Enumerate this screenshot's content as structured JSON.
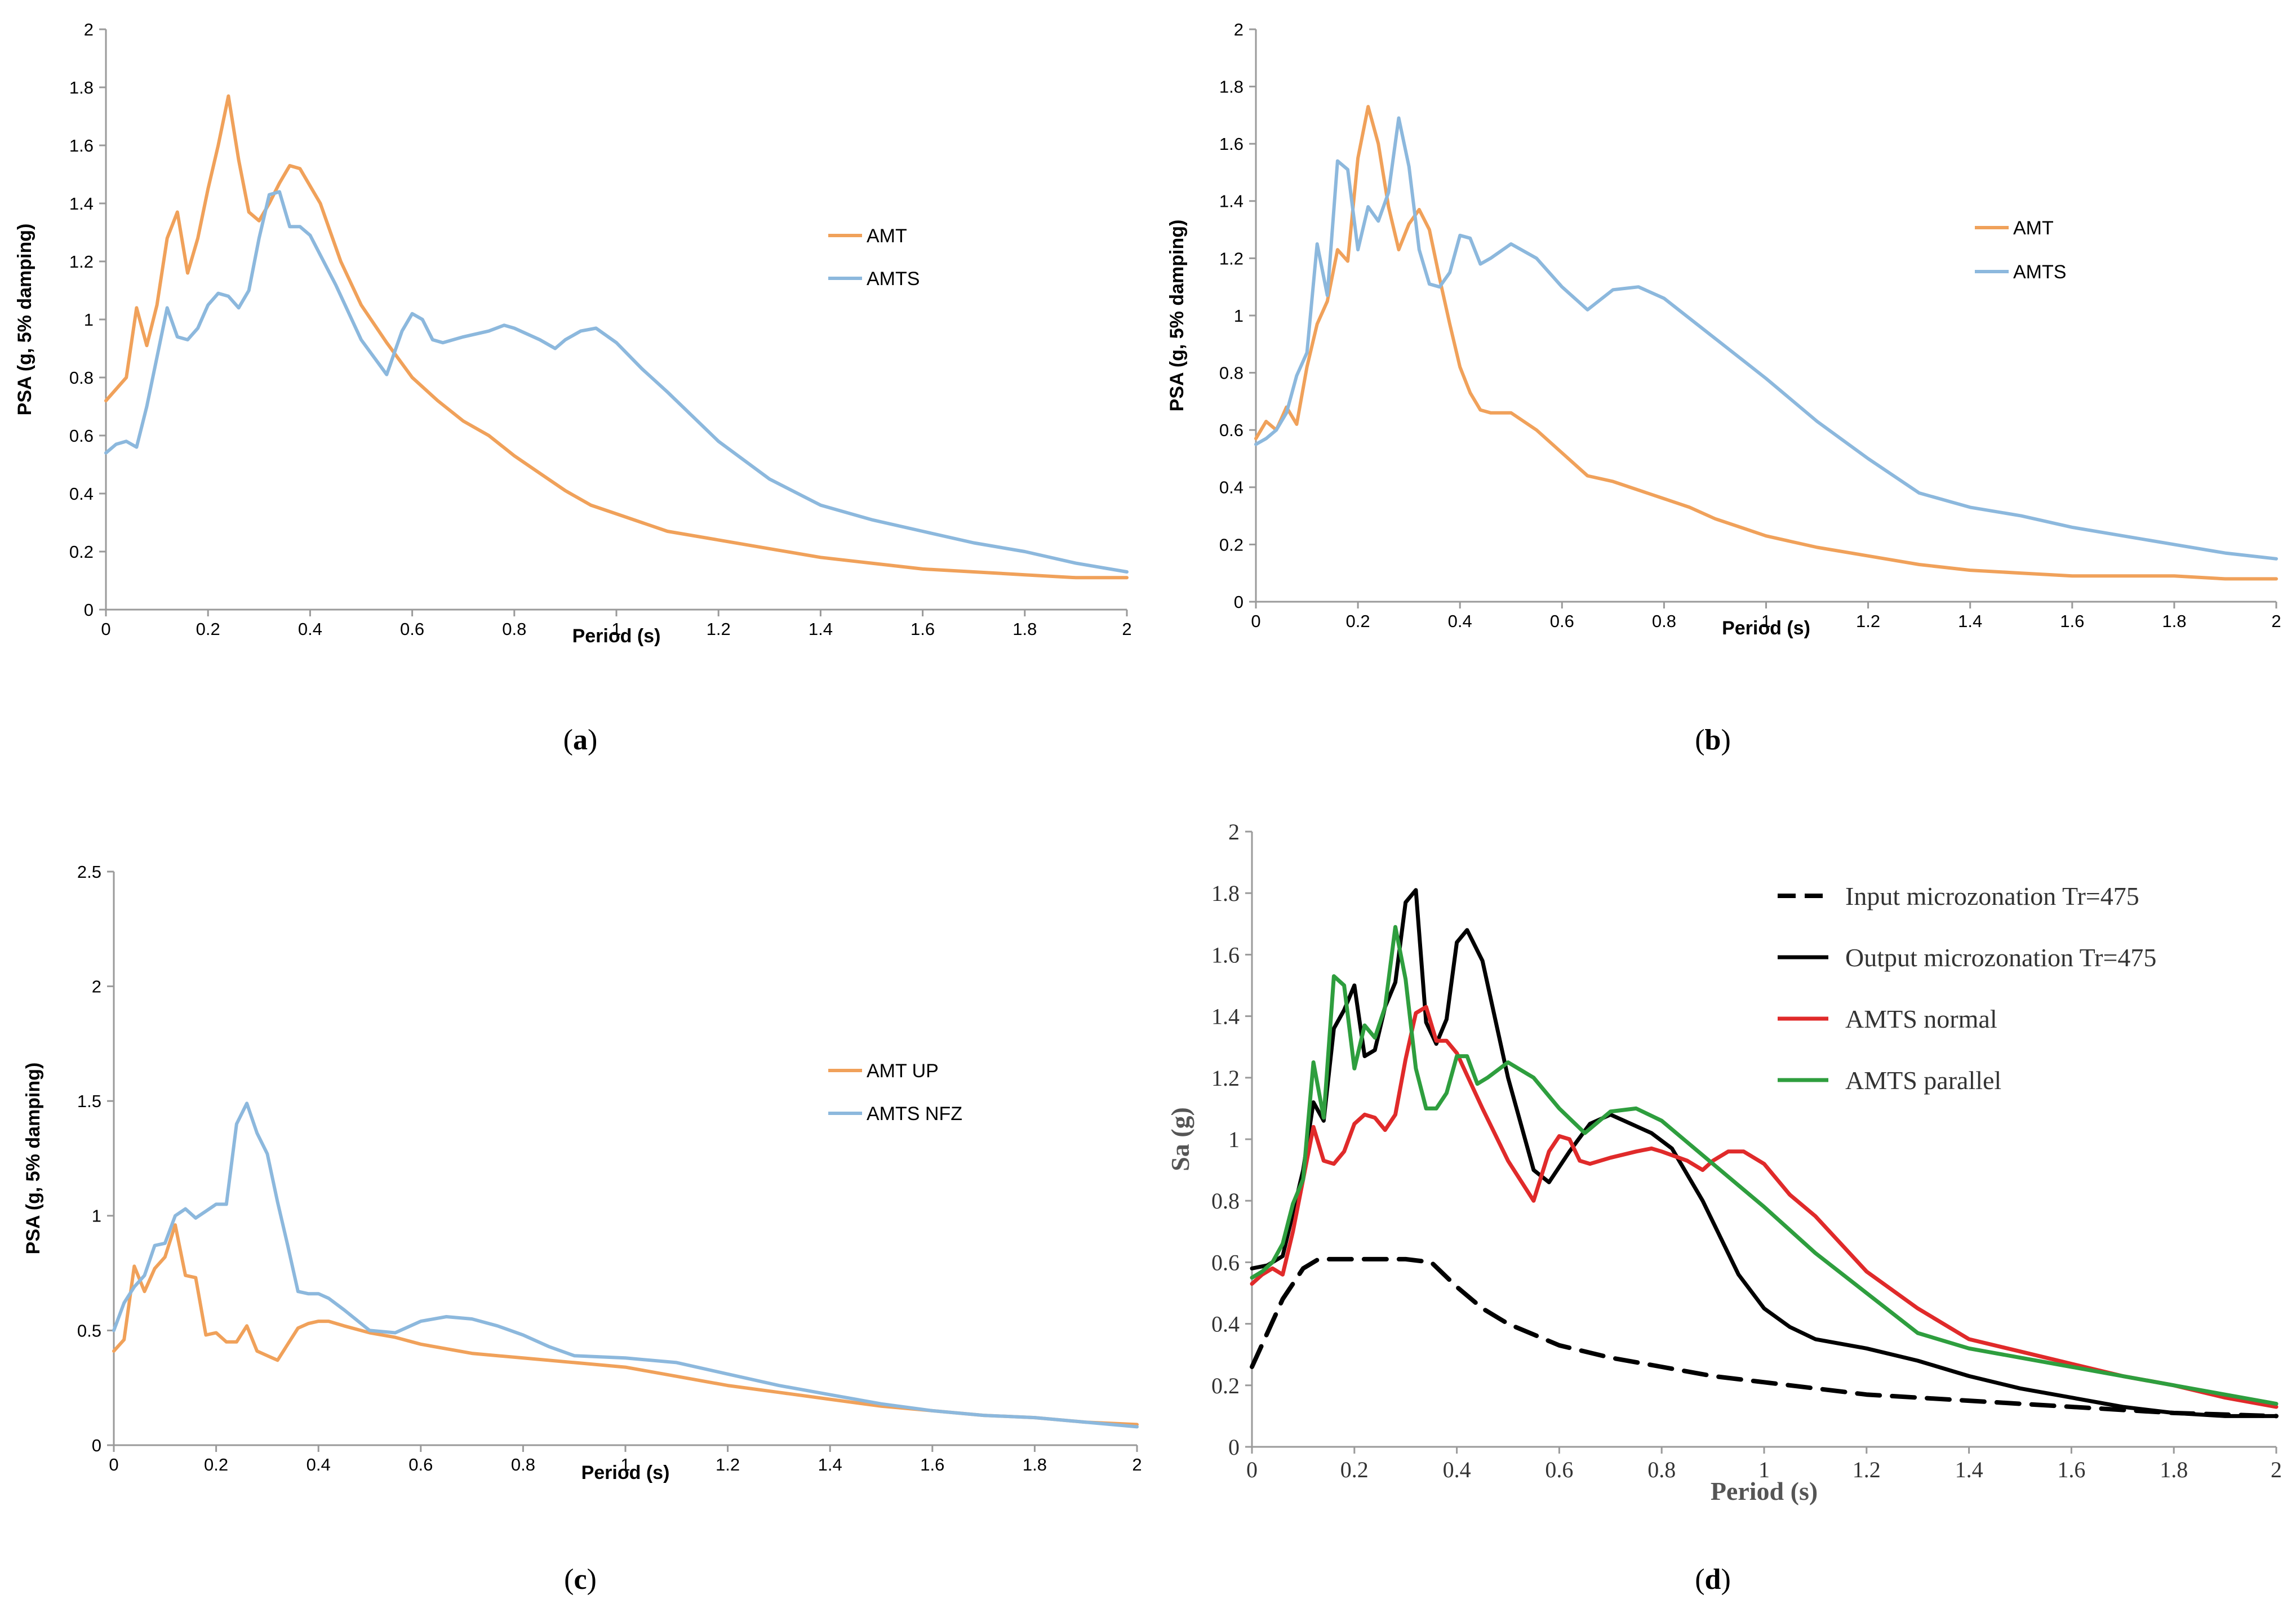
{
  "chart_data": [
    {
      "id": "a",
      "type": "line",
      "caption_letter": "a",
      "xlabel": "Period (s)",
      "ylabel": "PSA (g, 5% damping)",
      "xlim": [
        0,
        2
      ],
      "ylim": [
        0,
        2
      ],
      "xticks": [
        "0",
        "0.2",
        "0.4",
        "0.6",
        "0.8",
        "1",
        "1.2",
        "1.4",
        "1.6",
        "1.8",
        "2"
      ],
      "yticks": [
        "0",
        "0.2",
        "0.4",
        "0.6",
        "0.8",
        "1",
        "1.2",
        "1.4",
        "1.6",
        "1.8",
        "2"
      ],
      "legend_position": "right",
      "series": [
        {
          "name": "AMT",
          "color": "#f0a15a",
          "dash": false,
          "x": [
            0,
            0.02,
            0.04,
            0.06,
            0.08,
            0.1,
            0.12,
            0.14,
            0.16,
            0.18,
            0.2,
            0.22,
            0.24,
            0.26,
            0.28,
            0.3,
            0.32,
            0.34,
            0.36,
            0.38,
            0.4,
            0.42,
            0.44,
            0.46,
            0.5,
            0.55,
            0.6,
            0.65,
            0.7,
            0.75,
            0.8,
            0.85,
            0.9,
            0.95,
            1.0,
            1.05,
            1.1,
            1.2,
            1.3,
            1.4,
            1.5,
            1.6,
            1.7,
            1.8,
            1.9,
            2.0
          ],
          "y": [
            0.72,
            0.76,
            0.8,
            1.04,
            0.91,
            1.05,
            1.28,
            1.37,
            1.16,
            1.28,
            1.45,
            1.6,
            1.77,
            1.55,
            1.37,
            1.34,
            1.4,
            1.47,
            1.53,
            1.52,
            1.46,
            1.4,
            1.3,
            1.2,
            1.05,
            0.92,
            0.8,
            0.72,
            0.65,
            0.6,
            0.53,
            0.47,
            0.41,
            0.36,
            0.33,
            0.3,
            0.27,
            0.24,
            0.21,
            0.18,
            0.16,
            0.14,
            0.13,
            0.12,
            0.11,
            0.11
          ]
        },
        {
          "name": "AMTS",
          "color": "#8cb8dd",
          "dash": false,
          "x": [
            0,
            0.02,
            0.04,
            0.06,
            0.08,
            0.1,
            0.12,
            0.14,
            0.16,
            0.18,
            0.2,
            0.22,
            0.24,
            0.26,
            0.28,
            0.3,
            0.32,
            0.34,
            0.36,
            0.38,
            0.4,
            0.45,
            0.5,
            0.55,
            0.58,
            0.6,
            0.62,
            0.64,
            0.66,
            0.7,
            0.75,
            0.78,
            0.8,
            0.85,
            0.88,
            0.9,
            0.93,
            0.96,
            1.0,
            1.05,
            1.1,
            1.2,
            1.3,
            1.4,
            1.5,
            1.6,
            1.7,
            1.8,
            1.9,
            2.0
          ],
          "y": [
            0.54,
            0.57,
            0.58,
            0.56,
            0.7,
            0.87,
            1.04,
            0.94,
            0.93,
            0.97,
            1.05,
            1.09,
            1.08,
            1.04,
            1.1,
            1.28,
            1.43,
            1.44,
            1.32,
            1.32,
            1.29,
            1.12,
            0.93,
            0.81,
            0.96,
            1.02,
            1.0,
            0.93,
            0.92,
            0.94,
            0.96,
            0.98,
            0.97,
            0.93,
            0.9,
            0.93,
            0.96,
            0.97,
            0.92,
            0.83,
            0.75,
            0.58,
            0.45,
            0.36,
            0.31,
            0.27,
            0.23,
            0.2,
            0.16,
            0.13
          ]
        }
      ]
    },
    {
      "id": "b",
      "type": "line",
      "caption_letter": "b",
      "xlabel": "Period (s)",
      "ylabel": "PSA (g, 5% damping)",
      "xlim": [
        0,
        2
      ],
      "ylim": [
        0,
        2
      ],
      "xticks": [
        "0",
        "0.2",
        "0.4",
        "0.6",
        "0.8",
        "1",
        "1.2",
        "1.4",
        "1.6",
        "1.8",
        "2"
      ],
      "yticks": [
        "0",
        "0.2",
        "0.4",
        "0.6",
        "0.8",
        "1",
        "1.2",
        "1.4",
        "1.6",
        "1.8",
        "2"
      ],
      "legend_position": "right",
      "series": [
        {
          "name": "AMT",
          "color": "#f0a15a",
          "dash": false,
          "x": [
            0,
            0.02,
            0.04,
            0.06,
            0.08,
            0.1,
            0.12,
            0.14,
            0.16,
            0.18,
            0.2,
            0.22,
            0.24,
            0.26,
            0.28,
            0.3,
            0.32,
            0.34,
            0.36,
            0.38,
            0.4,
            0.42,
            0.44,
            0.46,
            0.5,
            0.55,
            0.6,
            0.65,
            0.7,
            0.75,
            0.8,
            0.85,
            0.9,
            0.95,
            1.0,
            1.1,
            1.2,
            1.3,
            1.4,
            1.5,
            1.6,
            1.7,
            1.8,
            1.9,
            2.0
          ],
          "y": [
            0.57,
            0.63,
            0.6,
            0.68,
            0.62,
            0.82,
            0.97,
            1.05,
            1.23,
            1.19,
            1.55,
            1.73,
            1.6,
            1.38,
            1.23,
            1.32,
            1.37,
            1.3,
            1.13,
            0.97,
            0.82,
            0.73,
            0.67,
            0.66,
            0.66,
            0.6,
            0.52,
            0.44,
            0.42,
            0.39,
            0.36,
            0.33,
            0.29,
            0.26,
            0.23,
            0.19,
            0.16,
            0.13,
            0.11,
            0.1,
            0.09,
            0.09,
            0.09,
            0.08,
            0.08
          ]
        },
        {
          "name": "AMTS",
          "color": "#8cb8dd",
          "dash": false,
          "x": [
            0,
            0.02,
            0.04,
            0.06,
            0.08,
            0.1,
            0.12,
            0.14,
            0.16,
            0.18,
            0.2,
            0.22,
            0.24,
            0.26,
            0.28,
            0.3,
            0.32,
            0.34,
            0.36,
            0.38,
            0.4,
            0.42,
            0.44,
            0.46,
            0.5,
            0.55,
            0.6,
            0.65,
            0.7,
            0.75,
            0.8,
            0.85,
            0.9,
            0.95,
            1.0,
            1.1,
            1.2,
            1.3,
            1.4,
            1.5,
            1.6,
            1.7,
            1.8,
            1.9,
            2.0
          ],
          "y": [
            0.55,
            0.57,
            0.6,
            0.66,
            0.79,
            0.87,
            1.25,
            1.07,
            1.54,
            1.51,
            1.23,
            1.38,
            1.33,
            1.43,
            1.69,
            1.52,
            1.23,
            1.11,
            1.1,
            1.15,
            1.28,
            1.27,
            1.18,
            1.2,
            1.25,
            1.2,
            1.1,
            1.02,
            1.09,
            1.1,
            1.06,
            0.99,
            0.92,
            0.85,
            0.78,
            0.63,
            0.5,
            0.38,
            0.33,
            0.3,
            0.26,
            0.23,
            0.2,
            0.17,
            0.15
          ]
        }
      ]
    },
    {
      "id": "c",
      "type": "line",
      "caption_letter": "c",
      "xlabel": "Period (s)",
      "ylabel": "PSA (g, 5% damping)",
      "xlim": [
        0,
        2
      ],
      "ylim": [
        0,
        2.5
      ],
      "xticks": [
        "0",
        "0.2",
        "0.4",
        "0.6",
        "0.8",
        "1",
        "1.2",
        "1.4",
        "1.6",
        "1.8",
        "2"
      ],
      "yticks": [
        "0",
        "0.5",
        "1",
        "1.5",
        "2",
        "2.5"
      ],
      "legend_position": "right",
      "series": [
        {
          "name": "AMT UP",
          "color": "#f0a15a",
          "dash": false,
          "x": [
            0,
            0.02,
            0.04,
            0.06,
            0.08,
            0.1,
            0.12,
            0.14,
            0.16,
            0.18,
            0.2,
            0.22,
            0.24,
            0.26,
            0.28,
            0.3,
            0.32,
            0.34,
            0.36,
            0.38,
            0.4,
            0.42,
            0.45,
            0.5,
            0.55,
            0.6,
            0.7,
            0.8,
            0.9,
            1.0,
            1.1,
            1.2,
            1.3,
            1.4,
            1.5,
            1.6,
            1.7,
            1.8,
            1.9,
            2.0
          ],
          "y": [
            0.41,
            0.46,
            0.78,
            0.67,
            0.77,
            0.82,
            0.96,
            0.74,
            0.73,
            0.48,
            0.49,
            0.45,
            0.45,
            0.52,
            0.41,
            0.39,
            0.37,
            0.44,
            0.51,
            0.53,
            0.54,
            0.54,
            0.52,
            0.49,
            0.47,
            0.44,
            0.4,
            0.38,
            0.36,
            0.34,
            0.3,
            0.26,
            0.23,
            0.2,
            0.17,
            0.15,
            0.13,
            0.12,
            0.1,
            0.09
          ]
        },
        {
          "name": "AMTS NFZ",
          "color": "#8cb8dd",
          "dash": false,
          "x": [
            0,
            0.02,
            0.04,
            0.06,
            0.08,
            0.1,
            0.12,
            0.14,
            0.16,
            0.18,
            0.2,
            0.22,
            0.24,
            0.26,
            0.28,
            0.3,
            0.32,
            0.34,
            0.36,
            0.38,
            0.4,
            0.42,
            0.45,
            0.5,
            0.55,
            0.6,
            0.65,
            0.7,
            0.75,
            0.8,
            0.85,
            0.9,
            1.0,
            1.1,
            1.2,
            1.3,
            1.4,
            1.5,
            1.6,
            1.7,
            1.8,
            1.9,
            2.0
          ],
          "y": [
            0.5,
            0.62,
            0.69,
            0.74,
            0.87,
            0.88,
            1.0,
            1.03,
            0.99,
            1.02,
            1.05,
            1.05,
            1.4,
            1.49,
            1.36,
            1.27,
            1.06,
            0.87,
            0.67,
            0.66,
            0.66,
            0.64,
            0.59,
            0.5,
            0.49,
            0.54,
            0.56,
            0.55,
            0.52,
            0.48,
            0.43,
            0.39,
            0.38,
            0.36,
            0.31,
            0.26,
            0.22,
            0.18,
            0.15,
            0.13,
            0.12,
            0.1,
            0.08
          ]
        }
      ]
    },
    {
      "id": "d",
      "type": "line",
      "caption_letter": "d",
      "xlabel": "Period (s)",
      "ylabel": "Sa (g)",
      "xlim": [
        0,
        2
      ],
      "ylim": [
        0,
        2
      ],
      "xticks": [
        "0",
        "0.2",
        "0.4",
        "0.6",
        "0.8",
        "1",
        "1.2",
        "1.4",
        "1.6",
        "1.8",
        "2"
      ],
      "yticks": [
        "0",
        "0.2",
        "0.4",
        "0.6",
        "0.8",
        "1",
        "1.2",
        "1.4",
        "1.6",
        "1.8",
        "2"
      ],
      "legend_position": "top-right",
      "series": [
        {
          "name": "Input microzonation Tr=475",
          "color": "#000000",
          "dash": true,
          "x": [
            0,
            0.03,
            0.06,
            0.1,
            0.13,
            0.2,
            0.3,
            0.35,
            0.4,
            0.45,
            0.5,
            0.6,
            0.7,
            0.8,
            0.9,
            1.0,
            1.2,
            1.4,
            1.6,
            1.8,
            2.0
          ],
          "y": [
            0.26,
            0.37,
            0.48,
            0.58,
            0.61,
            0.61,
            0.61,
            0.6,
            0.52,
            0.45,
            0.4,
            0.33,
            0.29,
            0.26,
            0.23,
            0.21,
            0.17,
            0.15,
            0.13,
            0.11,
            0.1
          ]
        },
        {
          "name": "Output microzonation Tr=475",
          "color": "#000000",
          "dash": false,
          "x": [
            0,
            0.03,
            0.06,
            0.1,
            0.12,
            0.14,
            0.16,
            0.18,
            0.2,
            0.22,
            0.24,
            0.26,
            0.28,
            0.3,
            0.32,
            0.34,
            0.36,
            0.38,
            0.4,
            0.42,
            0.45,
            0.5,
            0.55,
            0.58,
            0.62,
            0.66,
            0.7,
            0.74,
            0.78,
            0.82,
            0.88,
            0.95,
            1.0,
            1.05,
            1.1,
            1.2,
            1.3,
            1.4,
            1.5,
            1.6,
            1.7,
            1.8,
            1.9,
            2.0
          ],
          "y": [
            0.58,
            0.59,
            0.62,
            0.9,
            1.12,
            1.06,
            1.36,
            1.42,
            1.5,
            1.27,
            1.29,
            1.43,
            1.51,
            1.77,
            1.81,
            1.38,
            1.31,
            1.39,
            1.64,
            1.68,
            1.58,
            1.2,
            0.9,
            0.86,
            0.96,
            1.05,
            1.08,
            1.05,
            1.02,
            0.97,
            0.8,
            0.56,
            0.45,
            0.39,
            0.35,
            0.32,
            0.28,
            0.23,
            0.19,
            0.16,
            0.13,
            0.11,
            0.1,
            0.1
          ]
        },
        {
          "name": "AMTS normal",
          "color": "#e02a2a",
          "dash": false,
          "x": [
            0,
            0.02,
            0.04,
            0.06,
            0.08,
            0.1,
            0.12,
            0.14,
            0.16,
            0.18,
            0.2,
            0.22,
            0.24,
            0.26,
            0.28,
            0.3,
            0.32,
            0.34,
            0.36,
            0.38,
            0.4,
            0.45,
            0.5,
            0.55,
            0.58,
            0.6,
            0.62,
            0.64,
            0.66,
            0.7,
            0.75,
            0.78,
            0.8,
            0.85,
            0.88,
            0.9,
            0.93,
            0.96,
            1.0,
            1.05,
            1.1,
            1.2,
            1.3,
            1.4,
            1.5,
            1.6,
            1.7,
            1.8,
            1.9,
            2.0
          ],
          "y": [
            0.53,
            0.56,
            0.58,
            0.56,
            0.7,
            0.87,
            1.04,
            0.93,
            0.92,
            0.96,
            1.05,
            1.08,
            1.07,
            1.03,
            1.08,
            1.26,
            1.41,
            1.43,
            1.32,
            1.32,
            1.28,
            1.1,
            0.93,
            0.8,
            0.96,
            1.01,
            1.0,
            0.93,
            0.92,
            0.94,
            0.96,
            0.97,
            0.96,
            0.93,
            0.9,
            0.93,
            0.96,
            0.96,
            0.92,
            0.82,
            0.75,
            0.57,
            0.45,
            0.35,
            0.31,
            0.27,
            0.23,
            0.2,
            0.16,
            0.13
          ]
        },
        {
          "name": "AMTS parallel",
          "color": "#2e9e3e",
          "dash": false,
          "x": [
            0,
            0.02,
            0.04,
            0.06,
            0.08,
            0.1,
            0.12,
            0.14,
            0.16,
            0.18,
            0.2,
            0.22,
            0.24,
            0.26,
            0.28,
            0.3,
            0.32,
            0.34,
            0.36,
            0.38,
            0.4,
            0.42,
            0.44,
            0.46,
            0.5,
            0.55,
            0.6,
            0.65,
            0.7,
            0.75,
            0.8,
            0.85,
            0.9,
            0.95,
            1.0,
            1.1,
            1.2,
            1.3,
            1.4,
            1.5,
            1.6,
            1.7,
            1.8,
            1.9,
            2.0
          ],
          "y": [
            0.55,
            0.57,
            0.6,
            0.66,
            0.79,
            0.87,
            1.25,
            1.07,
            1.53,
            1.5,
            1.23,
            1.37,
            1.33,
            1.43,
            1.69,
            1.52,
            1.23,
            1.1,
            1.1,
            1.15,
            1.27,
            1.27,
            1.18,
            1.2,
            1.25,
            1.2,
            1.1,
            1.02,
            1.09,
            1.1,
            1.06,
            0.99,
            0.92,
            0.85,
            0.78,
            0.63,
            0.5,
            0.37,
            0.32,
            0.29,
            0.26,
            0.23,
            0.2,
            0.17,
            0.14
          ]
        }
      ]
    }
  ]
}
